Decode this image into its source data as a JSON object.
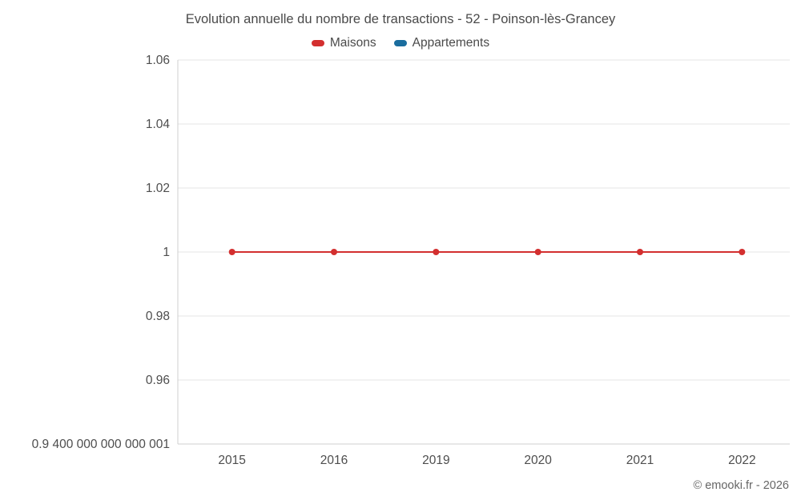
{
  "title": "Evolution annuelle du nombre de transactions - 52 - Poinson-lès-Grancey",
  "legend": [
    {
      "label": "Maisons",
      "color": "#d32f2f"
    },
    {
      "label": "Appartements",
      "color": "#1a6d9e"
    }
  ],
  "footer": "© emooki.fr - 2026",
  "chart_data": {
    "type": "line",
    "title": "Evolution annuelle du nombre de transactions - 52 - Poinson-lès-Grancey",
    "categories": [
      "2015",
      "2016",
      "2019",
      "2020",
      "2021",
      "2022"
    ],
    "series": [
      {
        "name": "Maisons",
        "color": "#d32f2f",
        "values": [
          1,
          1,
          1,
          1,
          1,
          1
        ]
      },
      {
        "name": "Appartements",
        "color": "#1a6d9e",
        "values": []
      }
    ],
    "ylim": [
      0.94,
      1.06
    ],
    "yticks": [
      {
        "value": 1.06,
        "label": "1.06"
      },
      {
        "value": 1.04,
        "label": "1.04"
      },
      {
        "value": 1.02,
        "label": "1.02"
      },
      {
        "value": 1,
        "label": "1"
      },
      {
        "value": 0.98,
        "label": "0.98"
      },
      {
        "value": 0.96,
        "label": "0.96"
      },
      {
        "value": 0.94,
        "label": "0.9 400 000 000 000 001"
      }
    ],
    "grid": true,
    "legend_position": "top",
    "marker": "circle"
  }
}
